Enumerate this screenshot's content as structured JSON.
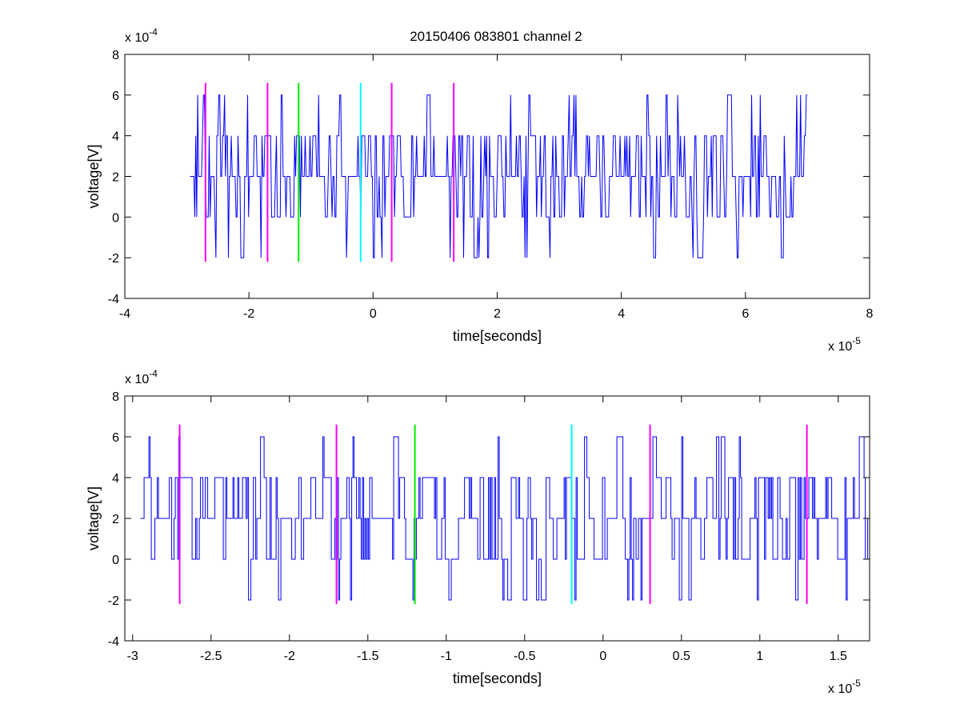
{
  "figure": {
    "title": "20150406 083801 channel 2",
    "background": "#ffffff"
  },
  "chart_data": [
    {
      "type": "line",
      "title": "20150406 083801 channel 2",
      "xlabel": "time[seconds]",
      "ylabel": "voltage[V]",
      "x_exponent": "x 10",
      "x_exponent_power": "-5",
      "y_exponent": "x 10",
      "y_exponent_power": "-4",
      "xlim": [
        -4e-05,
        8e-05
      ],
      "ylim": [
        -0.0004,
        0.0008
      ],
      "x_ticks": [
        -4e-05,
        -2e-05,
        0,
        2e-05,
        4e-05,
        6e-05,
        8e-05
      ],
      "x_tick_labels": [
        "-4",
        "-2",
        "0",
        "2",
        "4",
        "6",
        "8"
      ],
      "y_ticks": [
        -0.0004,
        -0.0002,
        0,
        0.0002,
        0.0004,
        0.0006,
        0.0008
      ],
      "y_tick_labels": [
        "-4",
        "-2",
        "0",
        "2",
        "4",
        "6",
        "8"
      ],
      "grid": false,
      "signal": {
        "color": "#0000ff",
        "x_start": -2.95e-05,
        "x_end": 7e-05,
        "levels": [
          -0.0002,
          0,
          0.0002,
          0.0004,
          0.0006
        ],
        "baseline": 0.0002
      },
      "markers": [
        {
          "x": -2.7e-05,
          "color": "#ff00ff",
          "ymin": -0.00022,
          "ymax": 0.00066
        },
        {
          "x": -1.7e-05,
          "color": "#ff00ff",
          "ymin": -0.00022,
          "ymax": 0.00066
        },
        {
          "x": -1.2e-05,
          "color": "#00ee00",
          "ymin": -0.00022,
          "ymax": 0.00066
        },
        {
          "x": -2e-06,
          "color": "#00ffff",
          "ymin": -0.00022,
          "ymax": 0.00066
        },
        {
          "x": 3e-06,
          "color": "#ff00ff",
          "ymin": -0.00022,
          "ymax": 0.00066
        },
        {
          "x": 1.3e-05,
          "color": "#ff00ff",
          "ymin": -0.00022,
          "ymax": 0.00066
        }
      ]
    },
    {
      "type": "line",
      "title": "",
      "xlabel": "time[seconds]",
      "ylabel": "voltage[V]",
      "x_exponent": "x 10",
      "x_exponent_power": "-5",
      "y_exponent": "x 10",
      "y_exponent_power": "-4",
      "xlim": [
        -3.05e-05,
        1.7e-05
      ],
      "ylim": [
        -0.0004,
        0.0008
      ],
      "x_ticks": [
        -3e-05,
        -2.5e-05,
        -2e-05,
        -1.5e-05,
        -1e-05,
        -5e-06,
        0,
        5e-06,
        1e-05,
        1.5e-05
      ],
      "x_tick_labels": [
        "-3",
        "-2.5",
        "-2",
        "-1.5",
        "-1",
        "-0.5",
        "0",
        "0.5",
        "1",
        "1.5"
      ],
      "y_ticks": [
        -0.0004,
        -0.0002,
        0,
        0.0002,
        0.0004,
        0.0006,
        0.0008
      ],
      "y_tick_labels": [
        "-4",
        "-2",
        "0",
        "2",
        "4",
        "6",
        "8"
      ],
      "grid": false,
      "signal": {
        "color": "#0000ff",
        "x_start": -2.95e-05,
        "x_end": 1.7e-05,
        "levels": [
          -0.0002,
          0,
          0.0002,
          0.0004,
          0.0006
        ],
        "baseline": 0.0002
      },
      "markers": [
        {
          "x": -2.7e-05,
          "color": "#ff00ff",
          "ymin": -0.00022,
          "ymax": 0.00066
        },
        {
          "x": -1.7e-05,
          "color": "#ff00ff",
          "ymin": -0.00022,
          "ymax": 0.00066
        },
        {
          "x": -1.2e-05,
          "color": "#00ee00",
          "ymin": -0.00022,
          "ymax": 0.00066
        },
        {
          "x": -2e-06,
          "color": "#00ffff",
          "ymin": -0.00022,
          "ymax": 0.00066
        },
        {
          "x": 3e-06,
          "color": "#ff00ff",
          "ymin": -0.00022,
          "ymax": 0.00066
        },
        {
          "x": 1.3e-05,
          "color": "#ff00ff",
          "ymin": -0.00022,
          "ymax": 0.00066
        }
      ]
    }
  ]
}
